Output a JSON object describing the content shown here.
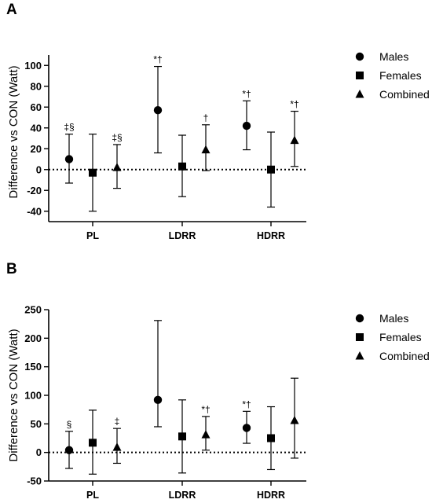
{
  "chart_data": [
    {
      "type": "scatter",
      "panel_label": "A",
      "ylabel": "Difference vs CON (Watt)",
      "ylim": [
        -50,
        110
      ],
      "yticks": [
        -40,
        -20,
        0,
        20,
        40,
        60,
        80,
        100
      ],
      "categories": [
        "PL",
        "LDRR",
        "HDRR"
      ],
      "reference_line": 0,
      "series": [
        {
          "name": "Males",
          "marker": "circle",
          "values": [
            10,
            57,
            42
          ],
          "ci_low": [
            -13,
            16,
            19
          ],
          "ci_high": [
            34,
            99,
            66
          ],
          "annotations": [
            "‡§",
            "*†",
            "*†"
          ]
        },
        {
          "name": "Females",
          "marker": "square",
          "values": [
            -3,
            3,
            0
          ],
          "ci_low": [
            -40,
            -26,
            -36
          ],
          "ci_high": [
            34,
            33,
            36
          ],
          "annotations": [
            "",
            "",
            ""
          ]
        },
        {
          "name": "Combined",
          "marker": "triangle",
          "values": [
            2,
            19,
            28
          ],
          "ci_low": [
            -18,
            -1,
            3
          ],
          "ci_high": [
            24,
            43,
            56
          ],
          "annotations": [
            "‡§",
            "†",
            "*†"
          ]
        }
      ],
      "legend": "right"
    },
    {
      "type": "scatter",
      "panel_label": "B",
      "ylabel": "Difference vs CON (Watt)",
      "ylim": [
        -50,
        250
      ],
      "yticks": [
        -50,
        0,
        50,
        100,
        150,
        200,
        250
      ],
      "categories": [
        "PL",
        "LDRR",
        "HDRR"
      ],
      "reference_line": 0,
      "series": [
        {
          "name": "Males",
          "marker": "circle",
          "values": [
            4,
            92,
            43
          ],
          "ci_low": [
            -28,
            45,
            16
          ],
          "ci_high": [
            37,
            231,
            72
          ],
          "annotations": [
            "§",
            "",
            "*†"
          ]
        },
        {
          "name": "Females",
          "marker": "square",
          "values": [
            17,
            28,
            25
          ],
          "ci_low": [
            -38,
            -36,
            -30
          ],
          "ci_high": [
            74,
            92,
            80
          ],
          "annotations": [
            "",
            "",
            ""
          ]
        },
        {
          "name": "Combined",
          "marker": "triangle",
          "values": [
            9,
            31,
            56
          ],
          "ci_low": [
            -19,
            4,
            -10
          ],
          "ci_high": [
            42,
            63,
            130
          ],
          "annotations": [
            "‡",
            "*†",
            ""
          ]
        }
      ],
      "legend": "right"
    }
  ]
}
